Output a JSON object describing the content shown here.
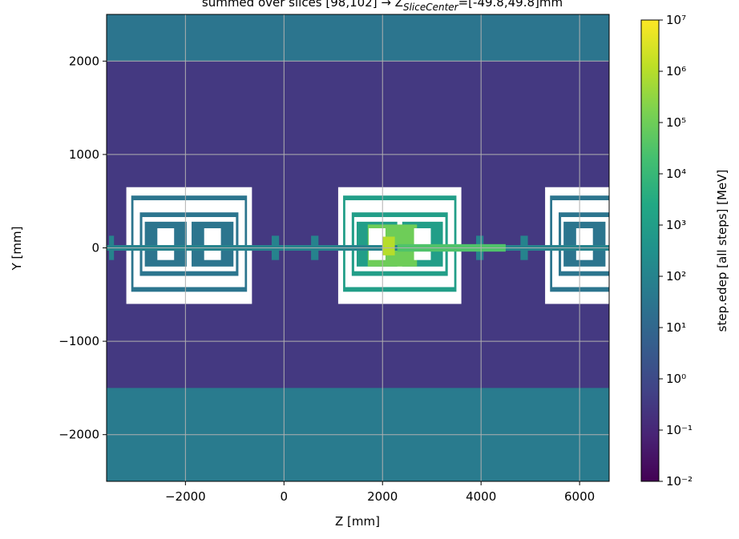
{
  "chart_data": {
    "type": "heatmap",
    "title": "summed over slices [98,102] → Z",
    "title_subscript": "SliceCenter",
    "title_suffix": "=[-49.8,49.8]mm",
    "x_label": "Z [mm]",
    "y_label": "Y [mm]",
    "colorbar_label": "step.edep [all steps] [MeV]",
    "colormap": "viridis",
    "colorbar_log": true,
    "grid": true,
    "xlim": [
      -3600,
      6600
    ],
    "ylim": [
      -2500,
      2500
    ],
    "xticks": [
      {
        "value": -2000,
        "label": "−2000"
      },
      0,
      2000,
      4000,
      6000
    ],
    "yticks": [
      {
        "value": -2000,
        "label": "−2000"
      },
      {
        "value": -1000,
        "label": "−1000"
      },
      0,
      1000,
      2000
    ],
    "clim": [
      0.01,
      10000000
    ],
    "cticks": [
      {
        "value": 0.01,
        "label": "10⁻²"
      },
      {
        "value": 0.1,
        "label": "10⁻¹"
      },
      {
        "value": 1,
        "label": "10⁰"
      },
      {
        "value": 10,
        "label": "10¹"
      },
      {
        "value": 100,
        "label": "10²"
      },
      {
        "value": 1000,
        "label": "10³"
      },
      {
        "value": 10000,
        "label": "10⁴"
      },
      {
        "value": 100000,
        "label": "10⁵"
      },
      {
        "value": 1000000,
        "label": "10⁶"
      },
      {
        "value": 10000000,
        "label": "10⁷"
      }
    ],
    "regions": [
      {
        "x": [
          -3600,
          6600
        ],
        "y": [
          -2500,
          2500
        ],
        "value": 0.3
      },
      {
        "x": [
          -3600,
          6600
        ],
        "y": [
          2000,
          2500
        ],
        "value": 30
      },
      {
        "x": [
          -3600,
          6600
        ],
        "y": [
          -2500,
          -1500
        ],
        "value": 50
      },
      {
        "x": [
          -3200,
          -650
        ],
        "y": [
          -600,
          650
        ],
        "value": null
      },
      {
        "x": [
          -3100,
          -750
        ],
        "y": [
          -470,
          560
        ],
        "value": 30
      },
      {
        "x": [
          -3055,
          -795
        ],
        "y": [
          -420,
          510
        ],
        "value": null
      },
      {
        "x": [
          -2925,
          -925
        ],
        "y": [
          -300,
          380
        ],
        "value": 30
      },
      {
        "x": [
          -2875,
          -975
        ],
        "y": [
          -250,
          330
        ],
        "value": null
      },
      {
        "x": [
          -2825,
          -1975
        ],
        "y": [
          -200,
          280
        ],
        "value": 30
      },
      {
        "x": [
          -1875,
          -1025
        ],
        "y": [
          -200,
          280
        ],
        "value": 30
      },
      {
        "x": [
          -2570,
          -2230
        ],
        "y": [
          -130,
          210
        ],
        "value": null
      },
      {
        "x": [
          -1620,
          -1280
        ],
        "y": [
          -130,
          210
        ],
        "value": null
      },
      {
        "x": [
          1100,
          3600
        ],
        "y": [
          -600,
          650
        ],
        "value": null
      },
      {
        "x": [
          1200,
          3500
        ],
        "y": [
          -470,
          560
        ],
        "value": 1000
      },
      {
        "x": [
          1245,
          3455
        ],
        "y": [
          -420,
          510
        ],
        "value": null
      },
      {
        "x": [
          1375,
          3325
        ],
        "y": [
          -300,
          380
        ],
        "value": 1000
      },
      {
        "x": [
          1425,
          3275
        ],
        "y": [
          -250,
          330
        ],
        "value": null
      },
      {
        "x": [
          1475,
          2300
        ],
        "y": [
          -200,
          280
        ],
        "value": 1000
      },
      {
        "x": [
          2400,
          3225
        ],
        "y": [
          -200,
          280
        ],
        "value": 1000
      },
      {
        "x": [
          1700,
          2700
        ],
        "y": [
          -200,
          250
        ],
        "value": 100000
      },
      {
        "x": [
          1720,
          2060
        ],
        "y": [
          -130,
          210
        ],
        "value": null
      },
      {
        "x": [
          2640,
          2980
        ],
        "y": [
          -130,
          210
        ],
        "value": null
      },
      {
        "x": [
          5300,
          7850
        ],
        "y": [
          -600,
          650
        ],
        "value": null
      },
      {
        "x": [
          5400,
          7750
        ],
        "y": [
          -470,
          560
        ],
        "value": 30
      },
      {
        "x": [
          5445,
          7705
        ],
        "y": [
          -420,
          510
        ],
        "value": null
      },
      {
        "x": [
          5575,
          7575
        ],
        "y": [
          -300,
          380
        ],
        "value": 30
      },
      {
        "x": [
          5625,
          7525
        ],
        "y": [
          -250,
          330
        ],
        "value": null
      },
      {
        "x": [
          5675,
          6525
        ],
        "y": [
          -200,
          280
        ],
        "value": 30
      },
      {
        "x": [
          5930,
          6270
        ],
        "y": [
          -130,
          210
        ],
        "value": null
      },
      {
        "x": [
          -3600,
          6600
        ],
        "y": [
          -30,
          30
        ],
        "value": 100
      },
      {
        "x": [
          -3550,
          -3450
        ],
        "y": [
          -130,
          130
        ],
        "value": 100
      },
      {
        "x": [
          -250,
          -100
        ],
        "y": [
          -130,
          130
        ],
        "value": 100
      },
      {
        "x": [
          550,
          700
        ],
        "y": [
          -130,
          130
        ],
        "value": 100
      },
      {
        "x": [
          3900,
          4050
        ],
        "y": [
          -130,
          130
        ],
        "value": 100
      },
      {
        "x": [
          4800,
          4950
        ],
        "y": [
          -130,
          130
        ],
        "value": 100
      },
      {
        "x": [
          2300,
          4500
        ],
        "y": [
          -40,
          40
        ],
        "value": 30000
      },
      {
        "x": [
          2000,
          2250
        ],
        "y": [
          -80,
          120
        ],
        "value": 1000000
      }
    ]
  }
}
